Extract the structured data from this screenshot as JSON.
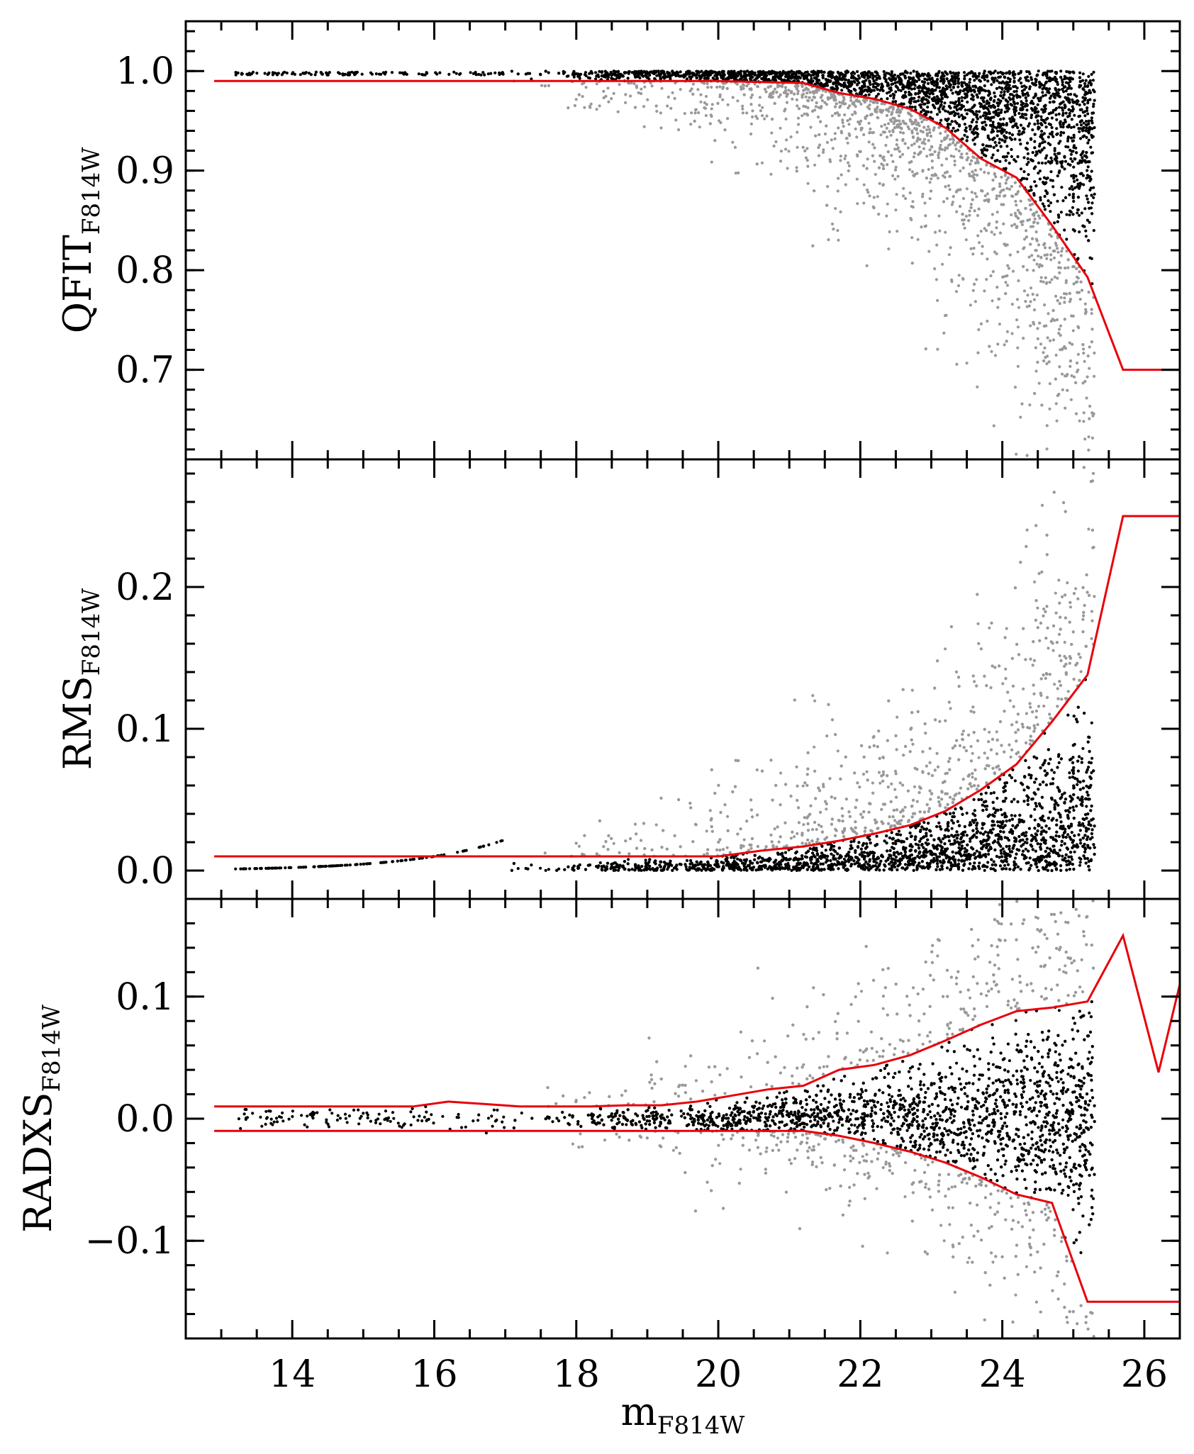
{
  "chart_data": [
    {
      "type": "scatter",
      "ylabel": "QFIT",
      "ylabel_sub": "F814W",
      "xlim": [
        12.5,
        26.5
      ],
      "ylim": [
        0.61,
        1.05
      ],
      "yticks": [
        {
          "v": 0.7,
          "label": "0.7"
        },
        {
          "v": 0.8,
          "label": "0.8"
        },
        {
          "v": 0.9,
          "label": "0.9"
        },
        {
          "v": 1.0,
          "label": "1.0"
        }
      ],
      "series": [
        {
          "role": "selection-boundary",
          "color": "#e8000b",
          "x": [
            12.9,
            15.5,
            18.0,
            20.0,
            21.2,
            21.7,
            22.2,
            22.7,
            23.2,
            23.7,
            24.2,
            24.7,
            25.2,
            25.7,
            26.5
          ],
          "y": [
            0.99,
            0.99,
            0.99,
            0.99,
            0.988,
            0.978,
            0.972,
            0.962,
            0.943,
            0.912,
            0.893,
            0.845,
            0.793,
            0.7,
            0.7
          ]
        }
      ]
    },
    {
      "type": "scatter",
      "ylabel": "RMS",
      "ylabel_sub": "F814W",
      "xlim": [
        12.5,
        26.5
      ],
      "ylim": [
        -0.02,
        0.29
      ],
      "yticks": [
        {
          "v": 0.0,
          "label": "0.0"
        },
        {
          "v": 0.1,
          "label": "0.1"
        },
        {
          "v": 0.2,
          "label": "0.2"
        }
      ],
      "series": [
        {
          "role": "selection-boundary",
          "color": "#e8000b",
          "x": [
            12.9,
            15.0,
            18.0,
            20.0,
            20.6,
            21.2,
            21.7,
            22.2,
            22.7,
            23.2,
            23.7,
            24.2,
            24.7,
            25.2,
            25.7,
            26.5
          ],
          "y": [
            0.01,
            0.01,
            0.01,
            0.01,
            0.014,
            0.017,
            0.021,
            0.026,
            0.032,
            0.042,
            0.057,
            0.075,
            0.105,
            0.138,
            0.25,
            0.25
          ]
        }
      ]
    },
    {
      "type": "scatter",
      "ylabel": "RADXS",
      "ylabel_sub": "F814W",
      "xlabel": "m",
      "xlabel_sub": "F814W",
      "xlim": [
        12.5,
        26.5
      ],
      "ylim": [
        -0.18,
        0.18
      ],
      "xticks": [
        {
          "v": 14,
          "label": "14"
        },
        {
          "v": 16,
          "label": "16"
        },
        {
          "v": 18,
          "label": "18"
        },
        {
          "v": 20,
          "label": "20"
        },
        {
          "v": 22,
          "label": "22"
        },
        {
          "v": 24,
          "label": "24"
        },
        {
          "v": 26,
          "label": "26"
        }
      ],
      "yticks": [
        {
          "v": -0.1,
          "label": "−0.1"
        },
        {
          "v": 0.0,
          "label": "0.0"
        },
        {
          "v": 0.1,
          "label": "0.1"
        }
      ],
      "series": [
        {
          "role": "upper-boundary",
          "color": "#e8000b",
          "x": [
            12.9,
            15.7,
            16.2,
            16.7,
            17.2,
            17.7,
            18.2,
            18.7,
            19.2,
            19.7,
            20.2,
            20.7,
            21.2,
            21.7,
            22.2,
            22.7,
            23.2,
            23.7,
            24.2,
            24.7,
            25.2,
            25.7,
            26.2,
            26.5
          ],
          "y": [
            0.01,
            0.01,
            0.014,
            0.012,
            0.01,
            0.01,
            0.01,
            0.011,
            0.011,
            0.014,
            0.019,
            0.024,
            0.027,
            0.04,
            0.044,
            0.052,
            0.064,
            0.077,
            0.088,
            0.091,
            0.096,
            0.15,
            0.038,
            0.11
          ]
        },
        {
          "role": "lower-boundary",
          "color": "#e8000b",
          "x": [
            12.9,
            15.0,
            18.0,
            20.0,
            21.2,
            21.7,
            22.2,
            22.7,
            23.2,
            23.7,
            24.2,
            24.7,
            25.2,
            25.7,
            26.5
          ],
          "y": [
            -0.01,
            -0.01,
            -0.01,
            -0.01,
            -0.01,
            -0.014,
            -0.02,
            -0.027,
            -0.036,
            -0.048,
            -0.062,
            -0.069,
            -0.15,
            -0.15,
            -0.15
          ]
        }
      ]
    }
  ],
  "colors": {
    "selected_points": "#000000",
    "rejected_points": "#999999",
    "boundary_line": "#e8000b"
  }
}
